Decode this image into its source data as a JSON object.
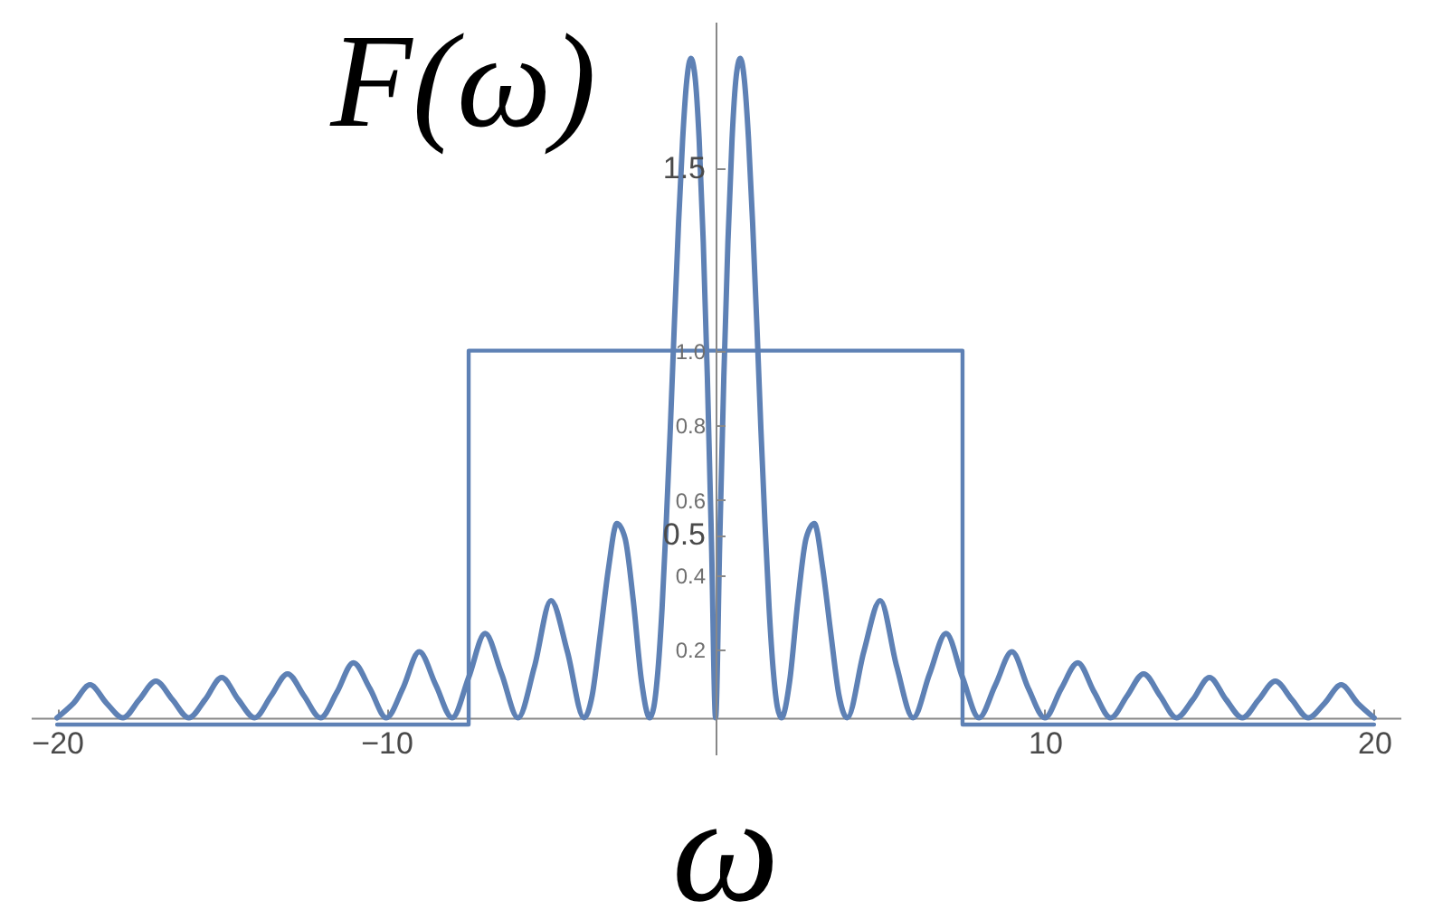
{
  "chart_data": {
    "type": "line",
    "xlabel": "ω",
    "ylabel": "F(ω)",
    "xlim": [
      -20.8,
      20.8
    ],
    "xticks": [
      {
        "value": -20,
        "label": "−20"
      },
      {
        "value": -10,
        "label": "−10"
      },
      10,
      20
    ],
    "ylim": [
      -0.1,
      1.9
    ],
    "yticks": [
      0.5,
      1.5
    ],
    "y2lim": [
      -0.08,
      1.88
    ],
    "y2ticks": [
      0.2,
      0.4,
      0.6,
      0.8,
      {
        "value": 1,
        "label": "1.0"
      }
    ],
    "series": [
      {
        "color": "#5e81b5",
        "x": [
          -20,
          -19.5,
          -19,
          -18.5,
          -18,
          -17.5,
          -17,
          -16.5,
          -16,
          -15.5,
          -15,
          -14.5,
          -14,
          -13.5,
          -13,
          -12.5,
          -12,
          -11.5,
          -11,
          -10.5,
          -10,
          -9.5,
          -9,
          -8.5,
          -8,
          -7.5,
          -7,
          -6.5,
          -6,
          -5.5,
          -5,
          -4.5,
          -4,
          -3.75,
          -3.5,
          -3.25,
          -3,
          -2.75,
          -2.5,
          -2.25,
          -2,
          -1.875,
          -1.75,
          -1.625,
          -1.5,
          -1.375,
          -1.25,
          -1.125,
          -1,
          -0.875,
          -0.75,
          -0.625,
          -0.5,
          -0.375,
          -0.25,
          -0.125,
          0,
          0.125,
          0.25,
          0.375,
          0.5,
          0.625,
          0.75,
          0.875,
          1,
          1.125,
          1.25,
          1.375,
          1.5,
          1.625,
          1.75,
          1.875,
          2,
          2.25,
          2.5,
          2.75,
          3,
          3.25,
          3.5,
          3.75,
          4,
          4.5,
          5,
          5.5,
          6,
          6.5,
          7,
          7.5,
          8,
          8.5,
          9,
          9.5,
          10,
          10.5,
          11,
          11.5,
          12,
          12.5,
          13,
          13.5,
          14,
          14.5,
          15,
          15.5,
          16,
          16.5,
          17,
          17.5,
          18,
          18.5,
          19,
          19.5,
          20
        ],
        "values": [
          0,
          0.04,
          0.09,
          0.04,
          0,
          0.05,
          0.1,
          0.05,
          0,
          0.05,
          0.11,
          0.05,
          0,
          0.06,
          0.12,
          0.06,
          0,
          0.07,
          0.15,
          0.08,
          0,
          0.08,
          0.18,
          0.09,
          0,
          0.11,
          0.23,
          0.12,
          0,
          0.14,
          0.32,
          0.18,
          0,
          0.06,
          0.23,
          0.41,
          0.53,
          0.49,
          0.32,
          0.1,
          0,
          0.03,
          0.13,
          0.3,
          0.53,
          0.79,
          1.08,
          1.35,
          1.58,
          1.74,
          1.8,
          1.75,
          1.58,
          1.3,
          0.93,
          0.48,
          0,
          0.48,
          0.93,
          1.3,
          1.58,
          1.75,
          1.8,
          1.74,
          1.58,
          1.35,
          1.08,
          0.79,
          0.53,
          0.3,
          0.13,
          0.03,
          0,
          0.1,
          0.32,
          0.49,
          0.53,
          0.41,
          0.23,
          0.06,
          0,
          0.18,
          0.32,
          0.14,
          0,
          0.12,
          0.23,
          0.11,
          0,
          0.09,
          0.18,
          0.08,
          0,
          0.08,
          0.15,
          0.07,
          0,
          0.06,
          0.12,
          0.06,
          0,
          0.05,
          0.11,
          0.05,
          0,
          0.05,
          0.1,
          0.05,
          0,
          0.04,
          0.09,
          0.04,
          0
        ]
      },
      {
        "color": "#5e81b5",
        "axis": "y2",
        "x": [
          -20,
          -7.5,
          -7.5,
          7.5,
          7.5,
          20
        ],
        "values": [
          0,
          0,
          1,
          1,
          0,
          0
        ]
      }
    ]
  }
}
